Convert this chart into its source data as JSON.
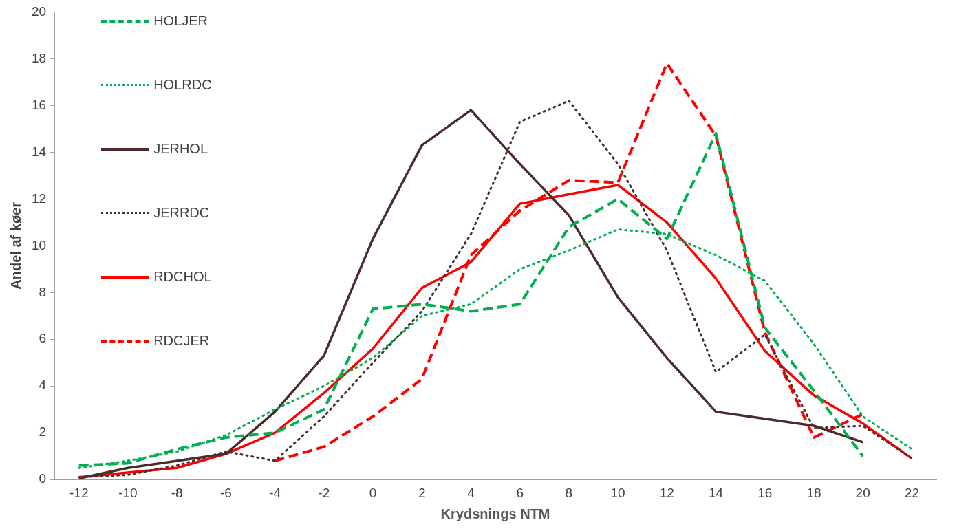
{
  "chart_data": {
    "type": "line",
    "xlabel": "Krydsnings NTM",
    "ylabel": "Andel af køer",
    "categories": [
      "-12",
      "-10",
      "-8",
      "-6",
      "-4",
      "-2",
      "0",
      "2",
      "4",
      "6",
      "8",
      "10",
      "12",
      "14",
      "16",
      "18",
      "20",
      "22"
    ],
    "ylim": [
      0,
      20
    ],
    "yticks": [
      0,
      2,
      4,
      6,
      8,
      10,
      12,
      14,
      16,
      18,
      20
    ],
    "grid": false,
    "legend": "top left",
    "marker": "none",
    "series": [
      {
        "name": "HOLJER",
        "color": "#00b050",
        "line_style": "dashed",
        "values": [
          0.6,
          0.7,
          1.3,
          1.8,
          2.0,
          3.0,
          7.3,
          7.5,
          7.2,
          7.5,
          10.8,
          12.0,
          10.3,
          14.8,
          6.5,
          3.8,
          1.0,
          null
        ]
      },
      {
        "name": "HOLRDC",
        "color": "#00b050",
        "line_style": "dotted",
        "values": [
          0.5,
          0.8,
          1.2,
          1.9,
          3.0,
          4.0,
          5.2,
          7.0,
          7.5,
          9.0,
          9.8,
          10.7,
          10.5,
          9.6,
          8.5,
          5.8,
          2.7,
          1.3
        ]
      },
      {
        "name": "JERHOL",
        "color": "#4a2d2a",
        "line_style": "solid",
        "values": [
          0.05,
          0.5,
          0.8,
          1.1,
          2.9,
          5.3,
          10.3,
          14.3,
          15.8,
          13.5,
          11.3,
          7.8,
          5.2,
          2.9,
          2.6,
          2.3,
          1.6,
          null
        ]
      },
      {
        "name": "JERRDC",
        "color": "#4a2d2a",
        "line_style": "dotted",
        "values": [
          0.1,
          0.2,
          0.6,
          1.2,
          0.8,
          2.7,
          5.0,
          7.2,
          10.5,
          15.3,
          16.2,
          13.5,
          9.8,
          4.6,
          6.2,
          2.2,
          2.3,
          0.9
        ]
      },
      {
        "name": "RDCHOL",
        "color": "#ff0000",
        "line_style": "solid",
        "values": [
          0.1,
          0.3,
          0.5,
          1.1,
          2.0,
          3.7,
          5.6,
          8.2,
          9.3,
          11.8,
          12.2,
          12.6,
          11.0,
          8.6,
          5.5,
          3.6,
          2.4,
          0.9
        ]
      },
      {
        "name": "RDCJER",
        "color": "#ff0000",
        "line_style": "dashed",
        "values": [
          null,
          null,
          null,
          null,
          0.8,
          1.4,
          2.7,
          4.3,
          9.6,
          11.5,
          12.8,
          12.7,
          17.8,
          14.7,
          6.3,
          1.8,
          2.8,
          null
        ]
      }
    ]
  }
}
